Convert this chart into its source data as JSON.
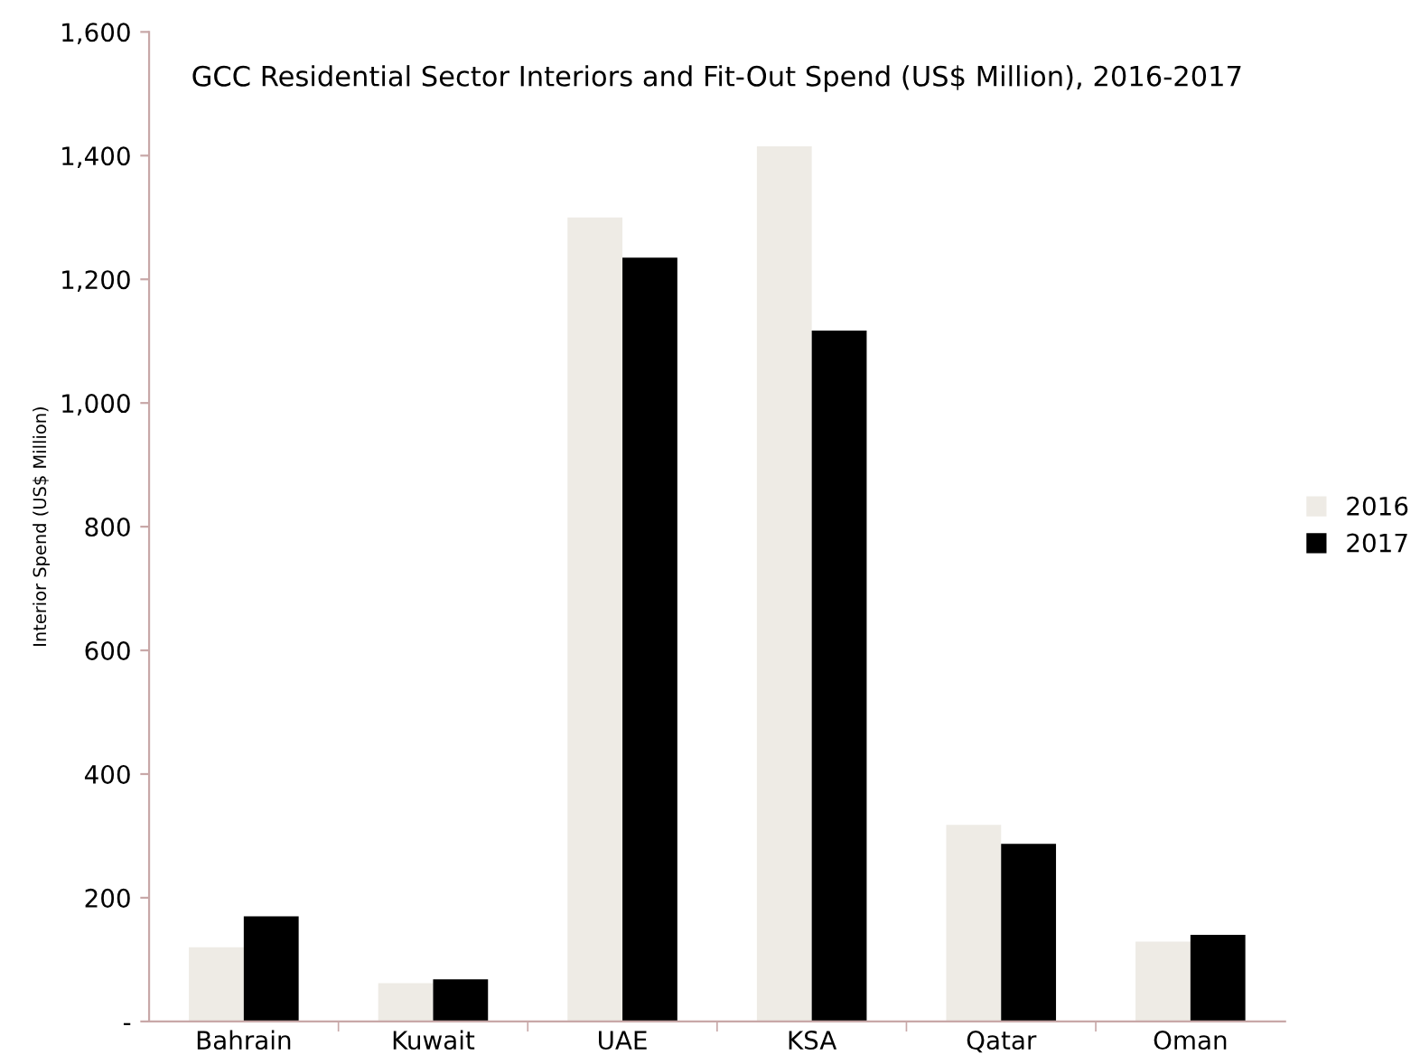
{
  "chart_data": {
    "type": "bar",
    "title": "GCC Residential Sector Interiors and Fit-Out Spend (US$ Million), 2016-2017",
    "ylabel": "Interior Spend (US$ Million)",
    "categories": [
      "Bahrain",
      "Kuwait",
      "UAE",
      "KSA",
      "Qatar",
      "Oman"
    ],
    "series": [
      {
        "name": "2016",
        "color": "#eeebe5",
        "values": [
          120,
          62,
          1300,
          1415,
          318,
          129
        ]
      },
      {
        "name": "2017",
        "color": "#000000",
        "values": [
          170,
          68,
          1235,
          1117,
          287,
          140
        ]
      }
    ],
    "ylim": [
      0,
      1600
    ],
    "yticks": [
      {
        "value": 0,
        "label": "-"
      },
      200,
      400,
      600,
      800,
      {
        "value": 1000,
        "label": "1,000"
      },
      {
        "value": 1200,
        "label": "1,200"
      },
      {
        "value": 1400,
        "label": "1,400"
      },
      {
        "value": 1600,
        "label": "1,600"
      }
    ],
    "grid": false,
    "legend": "right"
  }
}
